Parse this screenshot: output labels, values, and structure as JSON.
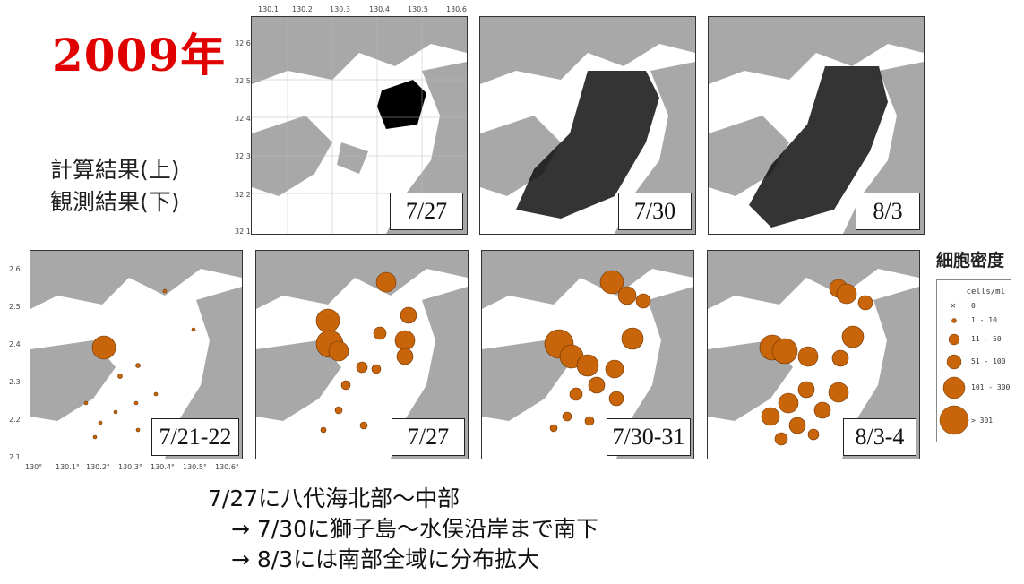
{
  "title": "2009年",
  "side_labels": {
    "line1": "計算結果(上)",
    "line2": "観測結果(下)"
  },
  "top_panels": [
    {
      "date": "7/27"
    },
    {
      "date": "7/30"
    },
    {
      "date": "8/3"
    }
  ],
  "bottom_panels": [
    {
      "date": "7/21-22"
    },
    {
      "date": "7/27"
    },
    {
      "date": "7/30-31"
    },
    {
      "date": "8/3-4"
    }
  ],
  "top_xticks": [
    "130.1",
    "130.2",
    "130.3",
    "130.4",
    "130.5",
    "130.6"
  ],
  "top_yticks": [
    "32.6",
    "32.5",
    "32.4",
    "32.3",
    "32.2",
    "32.1"
  ],
  "bottom_xticks": [
    "130°",
    "130.1°",
    "130.2°",
    "130.3°",
    "130.4°",
    "130.5°",
    "130.6°"
  ],
  "bottom_yticks": [
    "2.6",
    "2.5",
    "2.4",
    "2.3",
    "2.2",
    "2.1"
  ],
  "legend": {
    "title": "細胞密度",
    "unit": "cells/ml",
    "items": [
      "0",
      "1 - 10",
      "11 - 50",
      "51 - 100",
      "101 - 300",
      "> 301"
    ],
    "color": "#c8640a"
  },
  "summary": {
    "line1": "7/27に八代海北部～中部",
    "line2": "→ 7/30に獅子島～水俣沿岸まで南下",
    "line3": "→ 8/3には南部全域に分布拡大"
  },
  "colors": {
    "land": "#a8a8a8",
    "sea": "#ffffff",
    "bubble": "#c8640a",
    "year": "#e00000"
  }
}
